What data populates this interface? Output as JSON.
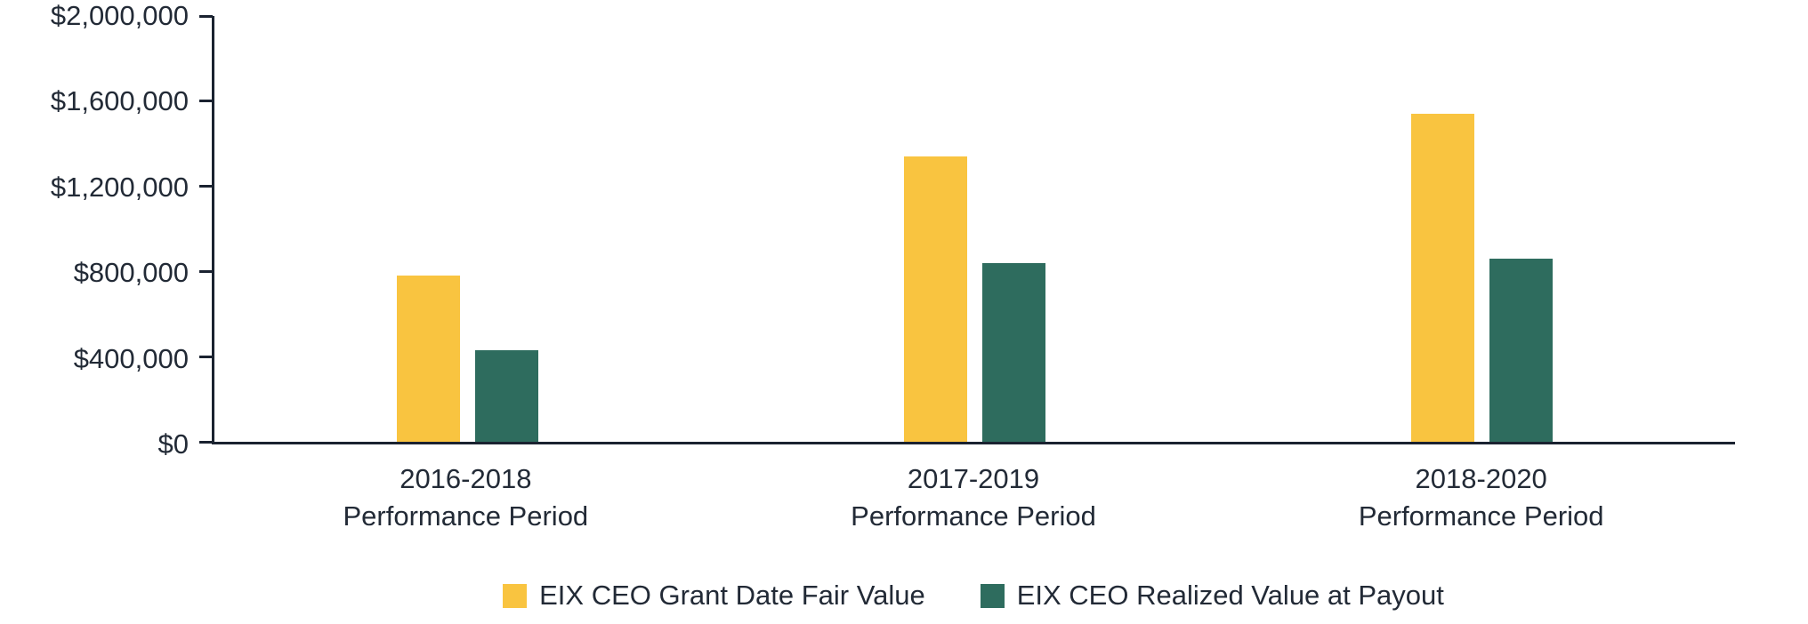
{
  "chart_data": {
    "type": "bar",
    "title": "",
    "categories": [
      "2016-2018",
      "2017-2019",
      "2018-2020"
    ],
    "category_sublabel": "Performance Period",
    "series": [
      {
        "name": "EIX CEO Grant Date Fair Value",
        "color": "#F9C440",
        "values": [
          780000,
          1340000,
          1540000
        ]
      },
      {
        "name": "EIX CEO Realized Value at Payout",
        "color": "#2E6C5E",
        "values": [
          430000,
          840000,
          860000
        ]
      }
    ],
    "y_ticks": [
      "$0",
      "$400,000",
      "$800,000",
      "$1,200,000",
      "$1,600,000",
      "$2,000,000"
    ],
    "ylim": [
      0,
      2000000
    ],
    "grid": false,
    "legend_position": "bottom"
  },
  "colors": {
    "axis": "#1A2230",
    "text": "#222A36",
    "background": "#FFFFFF"
  }
}
